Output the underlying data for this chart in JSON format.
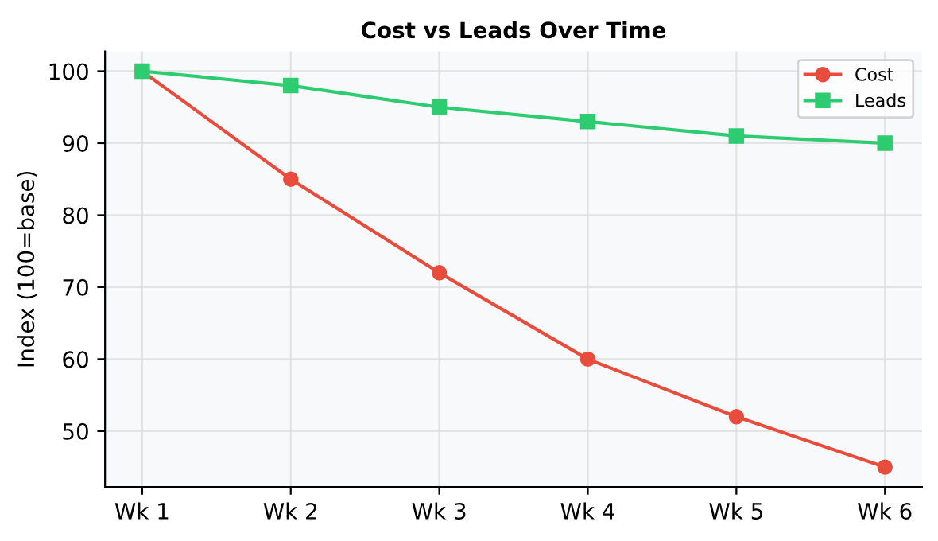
{
  "chart_data": {
    "type": "line",
    "title": "Cost vs Leads Over Time",
    "ylabel": "Index (100=base)",
    "categories": [
      "Wk 1",
      "Wk 2",
      "Wk 3",
      "Wk 4",
      "Wk 5",
      "Wk 6"
    ],
    "series": [
      {
        "name": "Cost",
        "color": "#e74c3c",
        "marker": "circle",
        "values": [
          100,
          85,
          72,
          60,
          52,
          45
        ]
      },
      {
        "name": "Leads",
        "color": "#2ecc71",
        "marker": "square",
        "values": [
          100,
          98,
          95,
          93,
          91,
          90
        ]
      }
    ],
    "ylim": [
      42.25,
      102.75
    ],
    "yticks": [
      50,
      60,
      70,
      80,
      90,
      100
    ],
    "grid": true,
    "legend": "top right",
    "line_style": "solid"
  }
}
